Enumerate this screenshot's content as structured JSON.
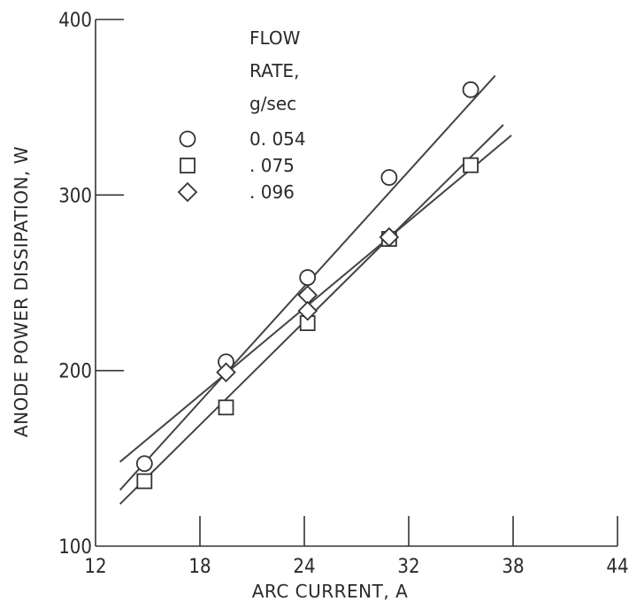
{
  "chart_data": {
    "type": "scatter",
    "xlabel": "ARC CURRENT, A",
    "ylabel": "ANODE POWER DISSIPATION, W",
    "xlim": [
      12,
      44
    ],
    "ylim": [
      100,
      400
    ],
    "x_ticks": [
      "12",
      "18",
      "24",
      "32",
      "38",
      "44"
    ],
    "y_ticks": [
      "100",
      "200",
      "300",
      "400"
    ],
    "legend": {
      "title_lines": [
        "FLOW",
        "RATE,",
        "g/sec"
      ],
      "position": "top-center"
    },
    "series": [
      {
        "name": "0.054",
        "label": "0. 054",
        "marker": "circle",
        "points": [
          [
            15,
            147
          ],
          [
            20,
            205
          ],
          [
            25,
            253
          ],
          [
            30,
            310
          ],
          [
            35,
            360
          ]
        ],
        "fit_line": [
          [
            13.5,
            132
          ],
          [
            36.5,
            368
          ]
        ]
      },
      {
        "name": ".075",
        "label": ". 075",
        "marker": "square",
        "points": [
          [
            15,
            137
          ],
          [
            20,
            179
          ],
          [
            25,
            227
          ],
          [
            30,
            275
          ],
          [
            35,
            317
          ]
        ],
        "fit_line": [
          [
            13.5,
            124
          ],
          [
            37,
            340
          ]
        ]
      },
      {
        "name": ".096",
        "label": ". 096",
        "marker": "diamond",
        "points": [
          [
            20,
            199
          ],
          [
            25,
            243
          ],
          [
            25,
            234
          ],
          [
            30,
            276
          ]
        ],
        "fit_line": [
          [
            13.5,
            148
          ],
          [
            37.5,
            334
          ]
        ]
      }
    ]
  }
}
